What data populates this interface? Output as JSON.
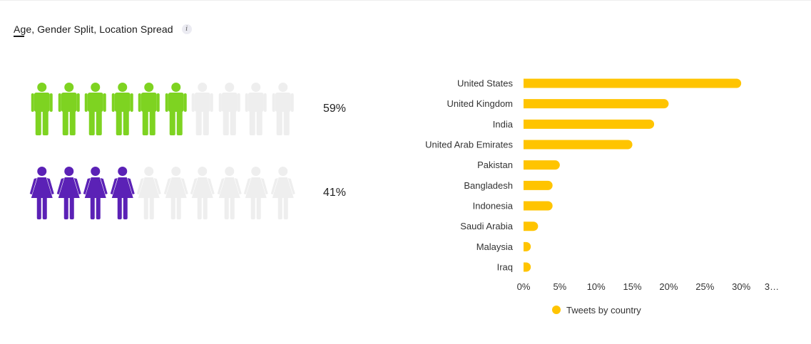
{
  "header": {
    "title": "Age, Gender Split, Location Spread",
    "info_icon": "i"
  },
  "gender": {
    "male": {
      "icon": "male-person-icon",
      "filled": 6,
      "total": 10,
      "percent_label": "59%",
      "color": "#7ed321"
    },
    "female": {
      "icon": "female-person-icon",
      "filled": 4,
      "total": 10,
      "percent_label": "41%",
      "color": "#5b21b6"
    },
    "inactive_color": "#eeeeee"
  },
  "chart_data": {
    "type": "bar",
    "orientation": "horizontal",
    "categories": [
      "United States",
      "United Kingdom",
      "India",
      "United Arab Emirates",
      "Pakistan",
      "Bangladesh",
      "Indonesia",
      "Saudi Arabia",
      "Malaysia",
      "Iraq"
    ],
    "series": [
      {
        "name": "Tweets by country",
        "values": [
          30,
          20,
          18,
          15,
          5,
          4,
          4,
          2,
          1,
          1
        ],
        "color": "#ffc400"
      }
    ],
    "xlim": [
      0,
      35
    ],
    "x_ticks": [
      "0%",
      "5%",
      "10%",
      "15%",
      "20%",
      "25%",
      "30%",
      "3…"
    ],
    "legend_position": "bottom",
    "grid": false
  }
}
